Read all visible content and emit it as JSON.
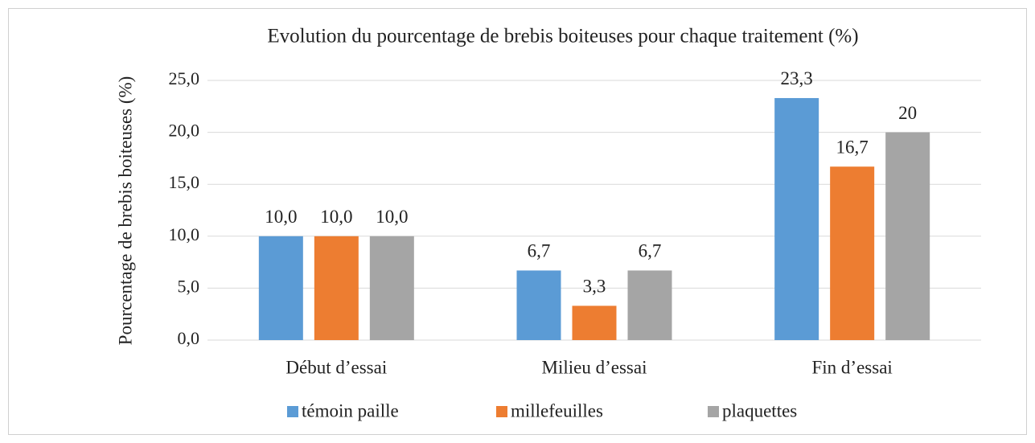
{
  "chart_data": {
    "type": "bar",
    "title": "Evolution du pourcentage de brebis boiteuses pour chaque traitement (%)",
    "y_label": "Pourcentage de brebis boiteuses (%)",
    "categories": [
      "Début d’essai",
      "Milieu d’essai",
      "Fin d’essai"
    ],
    "series": [
      {
        "name": "témoin paille",
        "color": "#5b9bd5",
        "values": [
          10,
          6.7,
          23.3
        ],
        "value_labels": [
          "10,0",
          "6,7",
          "23,3"
        ]
      },
      {
        "name": "millefeuilles",
        "color": "#ed7d31",
        "values": [
          10,
          3.3,
          16.7
        ],
        "value_labels": [
          "10,0",
          "3,3",
          "16,7"
        ]
      },
      {
        "name": "plaquettes",
        "color": "#a5a5a5",
        "values": [
          10,
          6.7,
          20
        ],
        "value_labels": [
          "10,0",
          "6,7",
          "20"
        ]
      }
    ],
    "ylim": [
      0,
      25
    ],
    "yticks": [
      {
        "value": 0,
        "label": "0,0"
      },
      {
        "value": 5,
        "label": "5,0"
      },
      {
        "value": 10,
        "label": "10,0"
      },
      {
        "value": 15,
        "label": "15,0"
      },
      {
        "value": 20,
        "label": "20,0"
      },
      {
        "value": 25,
        "label": "25,0"
      }
    ],
    "grid": true,
    "legend": "bottom"
  }
}
